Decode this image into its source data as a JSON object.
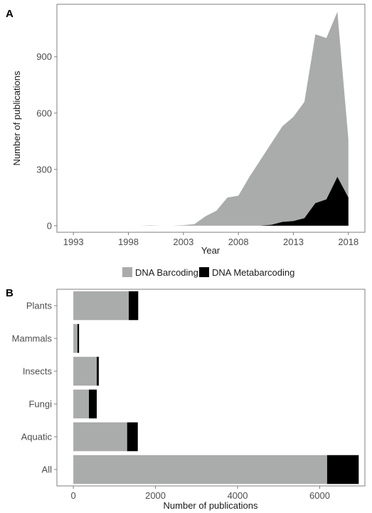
{
  "colors": {
    "barcoding": "#a9acab",
    "metabarcoding": "#000000",
    "frame": "#7f7f7f"
  },
  "chart_data": [
    {
      "type": "area",
      "panel_label": "A",
      "xlabel": "Year",
      "ylabel": "Number of publications",
      "xlim": [
        1991.5,
        2019.5
      ],
      "ylim": [
        -35,
        1180
      ],
      "xticks": [
        "1993",
        "1998",
        "2003",
        "2008",
        "2013",
        "2018"
      ],
      "yticks": [
        "0",
        "300",
        "600",
        "900"
      ],
      "grid": false,
      "legend_position": "bottom",
      "series": [
        {
          "name": "DNA Barcoding",
          "x": [
            1993,
            1994,
            1995,
            1996,
            1997,
            1998,
            1999,
            2000,
            2001,
            2002,
            2003,
            2004,
            2005,
            2006,
            2007,
            2008,
            2009,
            2010,
            2011,
            2012,
            2013,
            2014,
            2015,
            2016,
            2017,
            2018
          ],
          "values": [
            0,
            0,
            0,
            0,
            0,
            0,
            0,
            2,
            0,
            0,
            3,
            8,
            50,
            80,
            150,
            160,
            260,
            350,
            440,
            530,
            580,
            660,
            1020,
            1000,
            1140,
            460
          ]
        },
        {
          "name": "DNA Metabarcoding",
          "x": [
            1993,
            1994,
            1995,
            1996,
            1997,
            1998,
            1999,
            2000,
            2001,
            2002,
            2003,
            2004,
            2005,
            2006,
            2007,
            2008,
            2009,
            2010,
            2011,
            2012,
            2013,
            2014,
            2015,
            2016,
            2017,
            2018
          ],
          "values": [
            0,
            0,
            0,
            0,
            0,
            0,
            0,
            0,
            0,
            0,
            0,
            0,
            0,
            0,
            0,
            0,
            0,
            0,
            5,
            20,
            25,
            40,
            120,
            140,
            260,
            150
          ]
        }
      ]
    },
    {
      "type": "bar",
      "orientation": "horizontal",
      "stacked": true,
      "panel_label": "B",
      "xlabel": "Number of publications",
      "ylabel": "",
      "xlim": [
        -400,
        7100
      ],
      "xticks": [
        "0",
        "2000",
        "4000",
        "6000"
      ],
      "categories": [
        "Plants",
        "Mammals",
        "Insects",
        "Fungi",
        "Aquatic",
        "All"
      ],
      "grid": false,
      "series": [
        {
          "name": "DNA Barcoding",
          "values": [
            1350,
            100,
            570,
            380,
            1310,
            6180
          ]
        },
        {
          "name": "DNA Metabarcoding",
          "values": [
            230,
            40,
            50,
            190,
            260,
            770
          ]
        }
      ]
    }
  ],
  "legend": {
    "items": [
      "DNA Barcoding",
      "DNA Metabarcoding"
    ]
  }
}
